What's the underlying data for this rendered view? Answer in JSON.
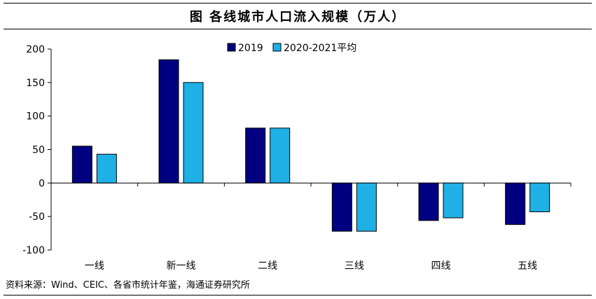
{
  "title": "图  各线城市人口流入规模（万人）",
  "source": "资料来源：Wind、CEIC、各省市统计年鉴，海通证券研究所",
  "colors": {
    "series_2019": "#000080",
    "series_avg": "#1FB0E6"
  },
  "chart_data": {
    "type": "bar",
    "categories": [
      "一线",
      "新一线",
      "二线",
      "三线",
      "四线",
      "五线"
    ],
    "series": [
      {
        "name": "2019",
        "values": [
          55,
          184,
          82,
          -72,
          -56,
          -62
        ]
      },
      {
        "name": "2020-2021平均",
        "values": [
          43,
          150,
          82,
          -72,
          -52,
          -43
        ]
      }
    ],
    "yticks": [
      200,
      150,
      100,
      50,
      0,
      -50,
      -100
    ],
    "ylim": [
      -100,
      200
    ],
    "legend_position": "top-center",
    "grid": false
  }
}
